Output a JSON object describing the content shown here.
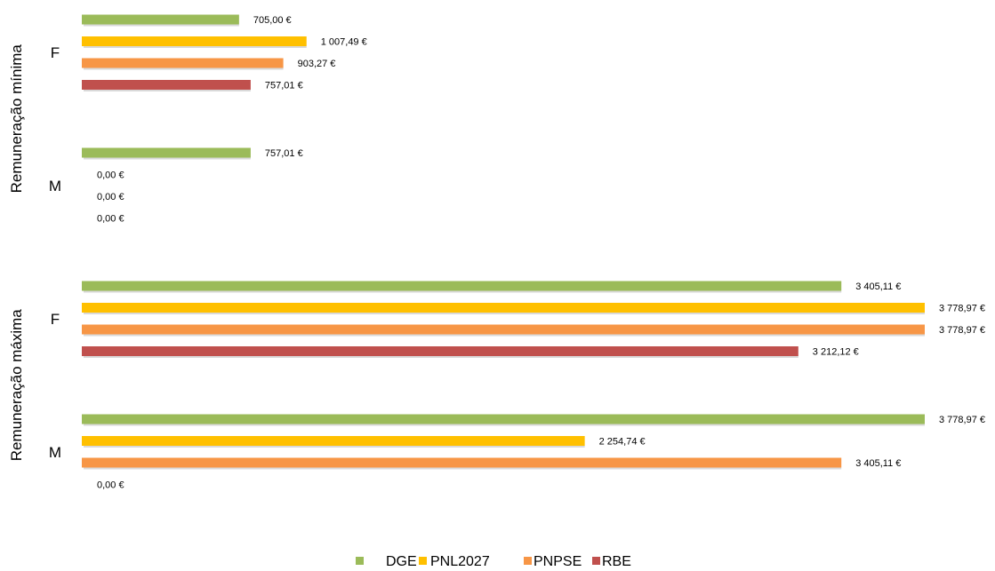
{
  "chart_data": {
    "type": "bar",
    "orientation": "horizontal",
    "groups": [
      {
        "label": "Remuneração mínima",
        "categories": [
          {
            "label": "F",
            "values": {
              "DGE": 705.0,
              "PNL2027": 1007.49,
              "PNPSE": 903.27,
              "RBE": 757.01
            },
            "labels": {
              "DGE": "705,00 €",
              "PNL2027": "1 007,49 €",
              "PNPSE": "903,27 €",
              "RBE": "757,01 €"
            }
          },
          {
            "label": "M",
            "values": {
              "DGE": 757.01,
              "PNL2027": 0,
              "PNPSE": 0,
              "RBE": 0
            },
            "labels": {
              "DGE": "757,01 €",
              "PNL2027": "0,00 €",
              "PNPSE": "0,00 €",
              "RBE": "0,00 €"
            }
          }
        ]
      },
      {
        "label": "Remuneração máxima",
        "categories": [
          {
            "label": "F",
            "values": {
              "DGE": 3405.11,
              "PNL2027": 3778.97,
              "PNPSE": 3778.97,
              "RBE": 3212.12
            },
            "labels": {
              "DGE": "3 405,11 €",
              "PNL2027": "3 778,97 €",
              "PNPSE": "3 778,97 €",
              "RBE": "3 212,12 €"
            }
          },
          {
            "label": "M",
            "values": {
              "DGE": 3778.97,
              "PNL2027": 2254.74,
              "PNPSE": 3405.11,
              "RBE": 0
            },
            "labels": {
              "DGE": "3 778,97 €",
              "PNL2027": "2 254,74 €",
              "PNPSE": "3 405,11 €",
              "RBE": "0,00 €"
            }
          }
        ]
      }
    ],
    "series": [
      {
        "name": "DGE",
        "color": "#9BBB59"
      },
      {
        "name": "PNL2027",
        "color": "#FFC000"
      },
      {
        "name": "PNPSE",
        "color": "#F79646"
      },
      {
        "name": "RBE",
        "color": "#C0504D"
      }
    ],
    "xlim": [
      0,
      3778.97
    ],
    "grid": false,
    "legend": "bottom"
  }
}
